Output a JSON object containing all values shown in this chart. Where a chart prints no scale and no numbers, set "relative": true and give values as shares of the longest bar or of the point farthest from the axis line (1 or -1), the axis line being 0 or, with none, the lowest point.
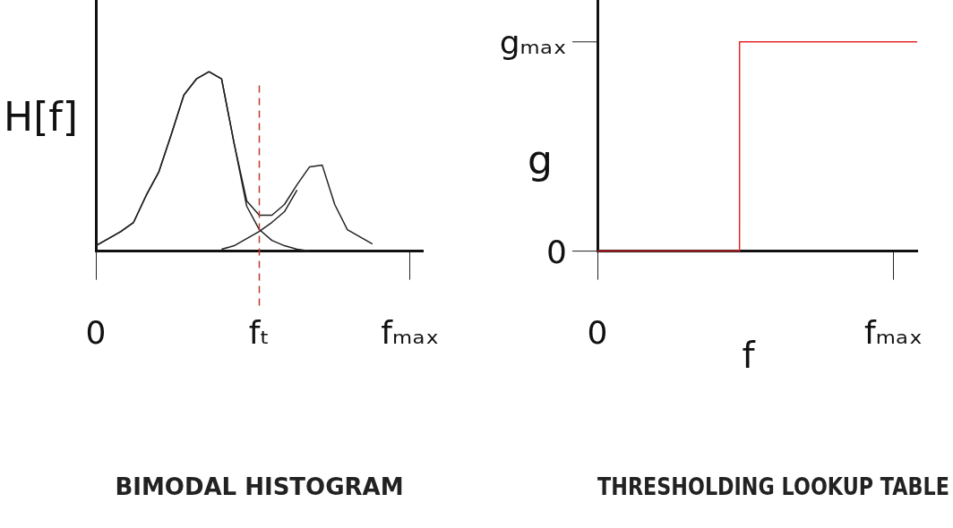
{
  "chart_data": [
    {
      "type": "line",
      "title": "BIMODAL HISTOGRAM",
      "ylabel": "H[f]",
      "relative": true,
      "grid": false,
      "legend": false,
      "marker": "none",
      "categories": [
        "0",
        null,
        null,
        null,
        null,
        null,
        null,
        null,
        null,
        null,
        null,
        null,
        null,
        "fₜ",
        null,
        null,
        null,
        null,
        null,
        null,
        null,
        null,
        null,
        null,
        null,
        "fₘₐₓ",
        null
      ],
      "ref_lines": [
        {
          "axis": "x",
          "value": "fₜ",
          "color": "#c0392b",
          "line_style": "dashed"
        }
      ],
      "series": [
        {
          "color": "#222222",
          "values": [
            0.03,
            0.07,
            0.11,
            0.16,
            0.31,
            0.44,
            0.65,
            0.87,
            0.96,
            1,
            0.96,
            0.6,
            0.25,
            0.12,
            0.06,
            0.03,
            0.01,
            0,
            null,
            null,
            null,
            null,
            null,
            null,
            null,
            null,
            null
          ]
        },
        {
          "color": "#222222",
          "values": [
            null,
            null,
            null,
            null,
            null,
            null,
            null,
            null,
            null,
            null,
            0.01,
            0.03,
            0.07,
            0.11,
            0.16,
            0.22,
            0.34,
            null,
            null,
            null,
            null,
            null,
            null,
            null,
            null,
            null,
            null
          ]
        },
        {
          "color": "#222222",
          "values": [
            0.03,
            0.07,
            0.11,
            0.16,
            0.31,
            0.44,
            0.65,
            0.87,
            0.96,
            1,
            0.96,
            0.6,
            0.28,
            0.2,
            0.2,
            0.26,
            0.37,
            0.47,
            0.48,
            0.26,
            0.12,
            0.08,
            0.04,
            null,
            null,
            null,
            null
          ]
        }
      ]
    },
    {
      "type": "step",
      "title": "THRESHOLDING LOOKUP TABLE",
      "xlabel": "f",
      "ylabel": "g",
      "relative": true,
      "grid": false,
      "legend": false,
      "marker": "none",
      "categories": [
        "0",
        null,
        null,
        null,
        null,
        null,
        null,
        null,
        null,
        null,
        null,
        null,
        null,
        null,
        null,
        null,
        null,
        null,
        null,
        null,
        null,
        null,
        null,
        null,
        null,
        "fₘₐₓ",
        null,
        null
      ],
      "ref_lines": [
        {
          "axis": "y",
          "value": 0,
          "label": "0",
          "color": "#222222"
        },
        {
          "axis": "y",
          "value": 1,
          "label": "gₘₐₓ",
          "color": "#222222"
        }
      ],
      "series": [
        {
          "color": "#e8262a",
          "values": [
            0,
            0,
            0,
            0,
            0,
            0,
            0,
            0,
            0,
            0,
            0,
            0,
            0,
            1,
            1,
            1,
            1,
            1,
            1,
            1,
            1,
            1,
            1,
            1,
            1,
            1,
            1,
            1
          ]
        }
      ]
    }
  ]
}
